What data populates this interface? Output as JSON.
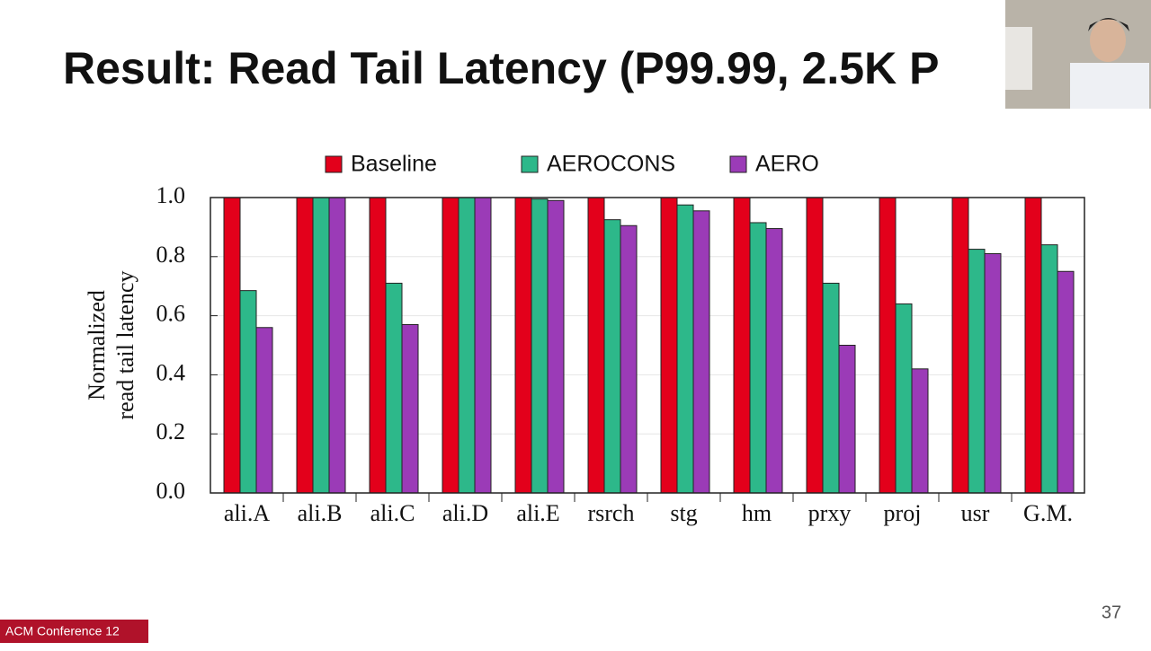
{
  "slide": {
    "title": "Result: Read Tail Latency (P99.99, 2.5K P",
    "page_number": "37",
    "footer": "ACM Conference 12"
  },
  "chart_data": {
    "type": "bar",
    "ylabel": [
      "Normalized",
      "read tail latency"
    ],
    "categories": [
      "ali.A",
      "ali.B",
      "ali.C",
      "ali.D",
      "ali.E",
      "rsrch",
      "stg",
      "hm",
      "prxy",
      "proj",
      "usr",
      "G.M."
    ],
    "series": [
      {
        "name": "Baseline",
        "color": "#e3001b",
        "values": [
          1,
          1,
          1,
          1,
          1,
          1,
          1,
          1,
          1,
          1,
          1,
          1
        ]
      },
      {
        "name": "AEROCONS",
        "color": "#2db88a",
        "values": [
          0.685,
          1,
          0.71,
          1,
          0.995,
          0.925,
          0.975,
          0.915,
          0.71,
          0.64,
          0.825,
          0.84
        ]
      },
      {
        "name": "AERO",
        "color": "#9b3bb7",
        "values": [
          0.56,
          1,
          0.57,
          1,
          0.99,
          0.905,
          0.955,
          0.895,
          0.5,
          0.42,
          0.81,
          0.75
        ]
      }
    ],
    "ylim": [
      0,
      1
    ],
    "yticks": [
      {
        "value": 0,
        "label": "0.0"
      },
      0.2,
      0.4,
      0.6,
      0.8,
      {
        "value": 1,
        "label": "1.0"
      }
    ],
    "grid": true
  }
}
